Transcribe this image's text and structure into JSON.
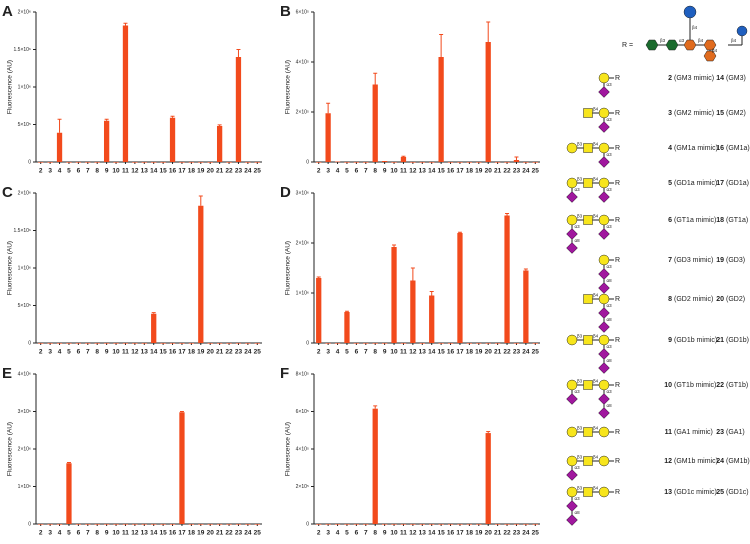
{
  "chart_data": [
    {
      "type": "bar",
      "label": "A",
      "y_label": "Fluorescence (AU)",
      "color": "#f24a1c",
      "categories": [
        "2",
        "3",
        "4",
        "5",
        "6",
        "7",
        "8",
        "9",
        "10",
        "11",
        "12",
        "13",
        "14",
        "15",
        "16",
        "17",
        "18",
        "19",
        "20",
        "21",
        "22",
        "23",
        "24",
        "25"
      ],
      "values": [
        0,
        0,
        390000,
        0,
        0,
        0,
        0,
        550000,
        0,
        1820000,
        0,
        0,
        0,
        0,
        590000,
        0,
        0,
        0,
        0,
        480000,
        0,
        1400000,
        0,
        0
      ],
      "errors": [
        null,
        null,
        180000,
        null,
        null,
        null,
        null,
        20000,
        null,
        30000,
        null,
        null,
        null,
        null,
        20000,
        null,
        null,
        null,
        null,
        15000,
        null,
        100000,
        null,
        null
      ],
      "ylim": [
        0,
        2000000
      ],
      "yticks": [
        0,
        {
          "value": 500000,
          "label": "5×10⁵"
        },
        {
          "value": 1000000,
          "label": "1×10⁶"
        },
        {
          "value": 1500000,
          "label": "1.5×10⁶"
        },
        {
          "value": 2000000,
          "label": "2×10⁶"
        }
      ]
    },
    {
      "type": "bar",
      "label": "B",
      "y_label": "Fluorescence (AU)",
      "color": "#f24a1c",
      "categories": [
        "2",
        "3",
        "4",
        "5",
        "6",
        "7",
        "8",
        "9",
        "10",
        "11",
        "12",
        "13",
        "14",
        "15",
        "16",
        "17",
        "18",
        "19",
        "20",
        "21",
        "22",
        "23",
        "24",
        "25"
      ],
      "values": [
        0,
        195000,
        2000,
        0,
        0,
        0,
        310000,
        4000,
        0,
        20000,
        0,
        0,
        0,
        420000,
        0,
        0,
        0,
        0,
        480000,
        0,
        0,
        8000,
        0,
        0
      ],
      "errors": [
        null,
        40000,
        null,
        null,
        null,
        null,
        45000,
        null,
        null,
        3000,
        null,
        null,
        null,
        90000,
        null,
        null,
        null,
        null,
        80000,
        null,
        null,
        12000,
        null,
        null
      ],
      "ylim": [
        0,
        600000
      ],
      "yticks": [
        0,
        {
          "value": 200000,
          "label": "2×10⁵"
        },
        {
          "value": 400000,
          "label": "4×10⁵"
        },
        {
          "value": 600000,
          "label": "6×10⁵"
        }
      ]
    },
    {
      "type": "bar",
      "label": "C",
      "y_label": "Fluorescence (AU)",
      "color": "#f24a1c",
      "categories": [
        "2",
        "3",
        "4",
        "5",
        "6",
        "7",
        "8",
        "9",
        "10",
        "11",
        "12",
        "13",
        "14",
        "15",
        "16",
        "17",
        "18",
        "19",
        "20",
        "21",
        "22",
        "23",
        "24",
        "25"
      ],
      "values": [
        0,
        0,
        0,
        0,
        0,
        0,
        0,
        0,
        0,
        0,
        0,
        0,
        390000,
        0,
        0,
        0,
        0,
        1830000,
        0,
        0,
        0,
        0,
        0,
        0
      ],
      "errors": [
        null,
        null,
        null,
        null,
        null,
        null,
        null,
        null,
        null,
        null,
        null,
        null,
        15000,
        null,
        null,
        null,
        null,
        130000,
        null,
        null,
        null,
        null,
        null,
        null
      ],
      "ylim": [
        0,
        2000000
      ],
      "yticks": [
        0,
        {
          "value": 500000,
          "label": "5×10⁵"
        },
        {
          "value": 1000000,
          "label": "1×10⁶"
        },
        {
          "value": 1500000,
          "label": "1.5×10⁶"
        },
        {
          "value": 2000000,
          "label": "2×10⁶"
        }
      ]
    },
    {
      "type": "bar",
      "label": "D",
      "y_label": "Fluorescence (AU)",
      "color": "#f24a1c",
      "categories": [
        "2",
        "3",
        "4",
        "5",
        "6",
        "7",
        "8",
        "9",
        "10",
        "11",
        "12",
        "13",
        "14",
        "15",
        "16",
        "17",
        "18",
        "19",
        "20",
        "21",
        "22",
        "23",
        "24",
        "25"
      ],
      "values": [
        1300000,
        0,
        0,
        620000,
        0,
        0,
        0,
        0,
        1920000,
        0,
        1250000,
        0,
        950000,
        0,
        0,
        2200000,
        0,
        0,
        0,
        0,
        2550000,
        0,
        1450000,
        0
      ],
      "errors": [
        20000,
        null,
        null,
        15000,
        null,
        null,
        null,
        null,
        40000,
        null,
        250000,
        null,
        80000,
        null,
        null,
        15000,
        null,
        null,
        null,
        null,
        40000,
        null,
        30000,
        null
      ],
      "ylim": [
        0,
        3000000
      ],
      "yticks": [
        0,
        {
          "value": 1000000,
          "label": "1×10⁶"
        },
        {
          "value": 2000000,
          "label": "2×10⁶"
        },
        {
          "value": 3000000,
          "label": "3×10⁶"
        }
      ]
    },
    {
      "type": "bar",
      "label": "E",
      "y_label": "Fluorescence (AU)",
      "color": "#f24a1c",
      "categories": [
        "2",
        "3",
        "4",
        "5",
        "6",
        "7",
        "8",
        "9",
        "10",
        "11",
        "12",
        "13",
        "14",
        "15",
        "16",
        "17",
        "18",
        "19",
        "20",
        "21",
        "22",
        "23",
        "24",
        "25"
      ],
      "values": [
        0,
        0,
        0,
        1620000,
        0,
        0,
        0,
        0,
        0,
        0,
        0,
        0,
        0,
        0,
        0,
        2980000,
        0,
        0,
        0,
        0,
        0,
        0,
        0,
        0
      ],
      "errors": [
        null,
        null,
        null,
        20000,
        null,
        null,
        null,
        null,
        null,
        null,
        null,
        null,
        null,
        null,
        null,
        20000,
        null,
        null,
        null,
        null,
        null,
        null,
        null,
        null
      ],
      "ylim": [
        0,
        4000000
      ],
      "yticks": [
        0,
        {
          "value": 1000000,
          "label": "1×10⁶"
        },
        {
          "value": 2000000,
          "label": "2×10⁶"
        },
        {
          "value": 3000000,
          "label": "3×10⁶"
        },
        {
          "value": 4000000,
          "label": "4×10⁶"
        }
      ]
    },
    {
      "type": "bar",
      "label": "F",
      "y_label": "Fluorescence (AU)",
      "color": "#f24a1c",
      "categories": [
        "2",
        "3",
        "4",
        "5",
        "6",
        "7",
        "8",
        "9",
        "10",
        "11",
        "12",
        "13",
        "14",
        "15",
        "16",
        "17",
        "18",
        "19",
        "20",
        "21",
        "22",
        "23",
        "24",
        "25"
      ],
      "values": [
        0,
        0,
        0,
        0,
        0,
        0,
        615000,
        0,
        0,
        0,
        0,
        0,
        0,
        0,
        0,
        0,
        0,
        0,
        485000,
        0,
        0,
        0,
        0,
        0
      ],
      "errors": [
        null,
        null,
        null,
        null,
        null,
        null,
        15000,
        null,
        null,
        null,
        null,
        null,
        null,
        null,
        null,
        null,
        null,
        null,
        8000,
        null,
        null,
        null,
        null,
        null
      ],
      "ylim": [
        0,
        800000
      ],
      "yticks": [
        0,
        {
          "value": 200000,
          "label": "2×10⁵"
        },
        {
          "value": 400000,
          "label": "4×10⁵"
        },
        {
          "value": 600000,
          "label": "6×10⁵"
        },
        {
          "value": 800000,
          "label": "8×10⁵"
        }
      ]
    }
  ],
  "structure_key": {
    "header": {
      "label": "R =",
      "links": [
        "β4",
        "β3",
        "α3",
        "β4",
        "β4"
      ],
      "side_link": "β4"
    },
    "rows": [
      {
        "num": "2",
        "name": "(GM3 mimic)",
        "num2": "14",
        "name2": "(GM3)",
        "links": [
          "α3"
        ]
      },
      {
        "num": "3",
        "name": "(GM2 mimic)",
        "num2": "15",
        "name2": "(GM2)",
        "links": [
          "β4",
          "α3"
        ]
      },
      {
        "num": "4",
        "name": "(GM1a mimic)",
        "num2": "16",
        "name2": "(GM1a)",
        "links": [
          "β3",
          "β4",
          "α3"
        ]
      },
      {
        "num": "5",
        "name": "(GD1a mimic)",
        "num2": "17",
        "name2": "(GD1a)",
        "links": [
          "β3",
          "β4",
          "α3",
          "α3"
        ]
      },
      {
        "num": "6",
        "name": "(GT1a mimic)",
        "num2": "18",
        "name2": "(GT1a)",
        "links": [
          "β3",
          "β4",
          "α3",
          "α3",
          "α8"
        ]
      },
      {
        "num": "7",
        "name": "(GD3 mimic)",
        "num2": "19",
        "name2": "(GD3)",
        "links": [
          "α3",
          "α8"
        ]
      },
      {
        "num": "8",
        "name": "(GD2 mimic)",
        "num2": "20",
        "name2": "(GD2)",
        "links": [
          "β4",
          "α3",
          "α8"
        ]
      },
      {
        "num": "9",
        "name": "(GD1b mimic)",
        "num2": "21",
        "name2": "(GD1b)",
        "links": [
          "β3",
          "β4",
          "α3",
          "α8"
        ]
      },
      {
        "num": "10",
        "name": "(GT1b mimic)",
        "num2": "22",
        "name2": "(GT1b)",
        "links": [
          "β3",
          "β4",
          "α3",
          "α3",
          "α8"
        ]
      },
      {
        "num": "11",
        "name": "(GA1 mimic)",
        "num2": "23",
        "name2": "(GA1)",
        "links": [
          "β3",
          "β4"
        ]
      },
      {
        "num": "12",
        "name": "(GM1b mimic)",
        "num2": "24",
        "name2": "(GM1b)",
        "links": [
          "β3",
          "β4",
          "α3"
        ]
      },
      {
        "num": "13",
        "name": "(GD1c mimic)",
        "num2": "25",
        "name2": "(GD1c)",
        "links": [
          "β3",
          "β4",
          "α3",
          "α8"
        ]
      }
    ]
  }
}
